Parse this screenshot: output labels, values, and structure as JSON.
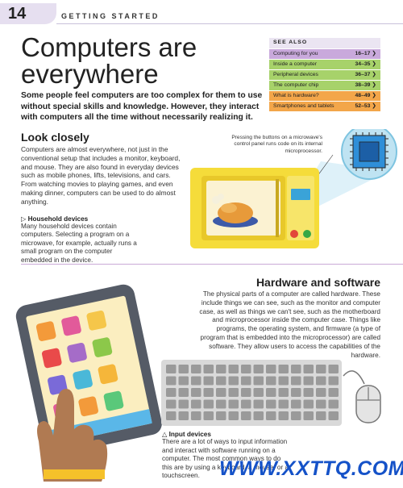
{
  "header": {
    "page_number": "14",
    "section": "GETTING STARTED"
  },
  "title": "Computers are everywhere",
  "intro": "Some people feel computers are too complex for them to use without special skills and knowledge. However, they interact with computers all the time without necessarily realizing it.",
  "look_closely": {
    "heading": "Look closely",
    "body": "Computers are almost everywhere, not just in the conventional setup that includes a monitor, keyboard, and mouse. They are also found in everyday devices such as mobile phones, lifts, televisions, and cars. From watching movies to playing games, and even making dinner, computers can be used to do almost anything."
  },
  "microwave_caption": "Pressing the buttons on a microwave's control panel runs code on its internal microprocessor.",
  "household": {
    "title": "Household devices",
    "body": "Many household devices contain computers. Selecting a program on a microwave, for example, actually runs a small program on the computer embedded in the device."
  },
  "hardware_software": {
    "heading": "Hardware and software",
    "body": "The physical parts of a computer are called hardware. These include things we can see, such as the monitor and computer case, as well as things we can't see, such as the motherboard and microprocessor inside the computer case. Things like programs, the operating system, and firmware (a type of program that is embedded into the microprocessor) are called software. They allow users to access the capabilities of the hardware."
  },
  "input_devices": {
    "title": "Input devices",
    "body": "There are a lot of ways to input information and interact with software running on a computer. The most common ways to do this are by using a keyboard, a mouse, or a touchscreen."
  },
  "see_also": {
    "heading": "SEE ALSO",
    "items": [
      {
        "label": "Computing for you",
        "pages": "16–17 ❯",
        "color": "#c9a9dc"
      },
      {
        "label": "Inside a computer",
        "pages": "34–35 ❯",
        "color": "#a7d26a"
      },
      {
        "label": "Peripheral devices",
        "pages": "36–37 ❯",
        "color": "#a7d26a"
      },
      {
        "label": "The computer chip",
        "pages": "38–39 ❯",
        "color": "#a7d26a"
      },
      {
        "label": "What is hardware?",
        "pages": "48–49 ❯",
        "color": "#f3a64a"
      },
      {
        "label": "Smartphones and tablets",
        "pages": "52–53 ❯",
        "color": "#f3a64a"
      }
    ]
  },
  "watermark": "WWW.XXTTQ.COM",
  "icons": [
    "tablet-icon",
    "microwave-icon",
    "microchip-icon",
    "keyboard-icon",
    "mouse-icon",
    "hand-icon"
  ],
  "colors": {
    "accent_purple": "#c9a9dc",
    "accent_green": "#a7d26a",
    "accent_orange": "#f3a64a",
    "microwave_yellow": "#f5dc3a",
    "chip_blue": "#2f8fd8"
  }
}
